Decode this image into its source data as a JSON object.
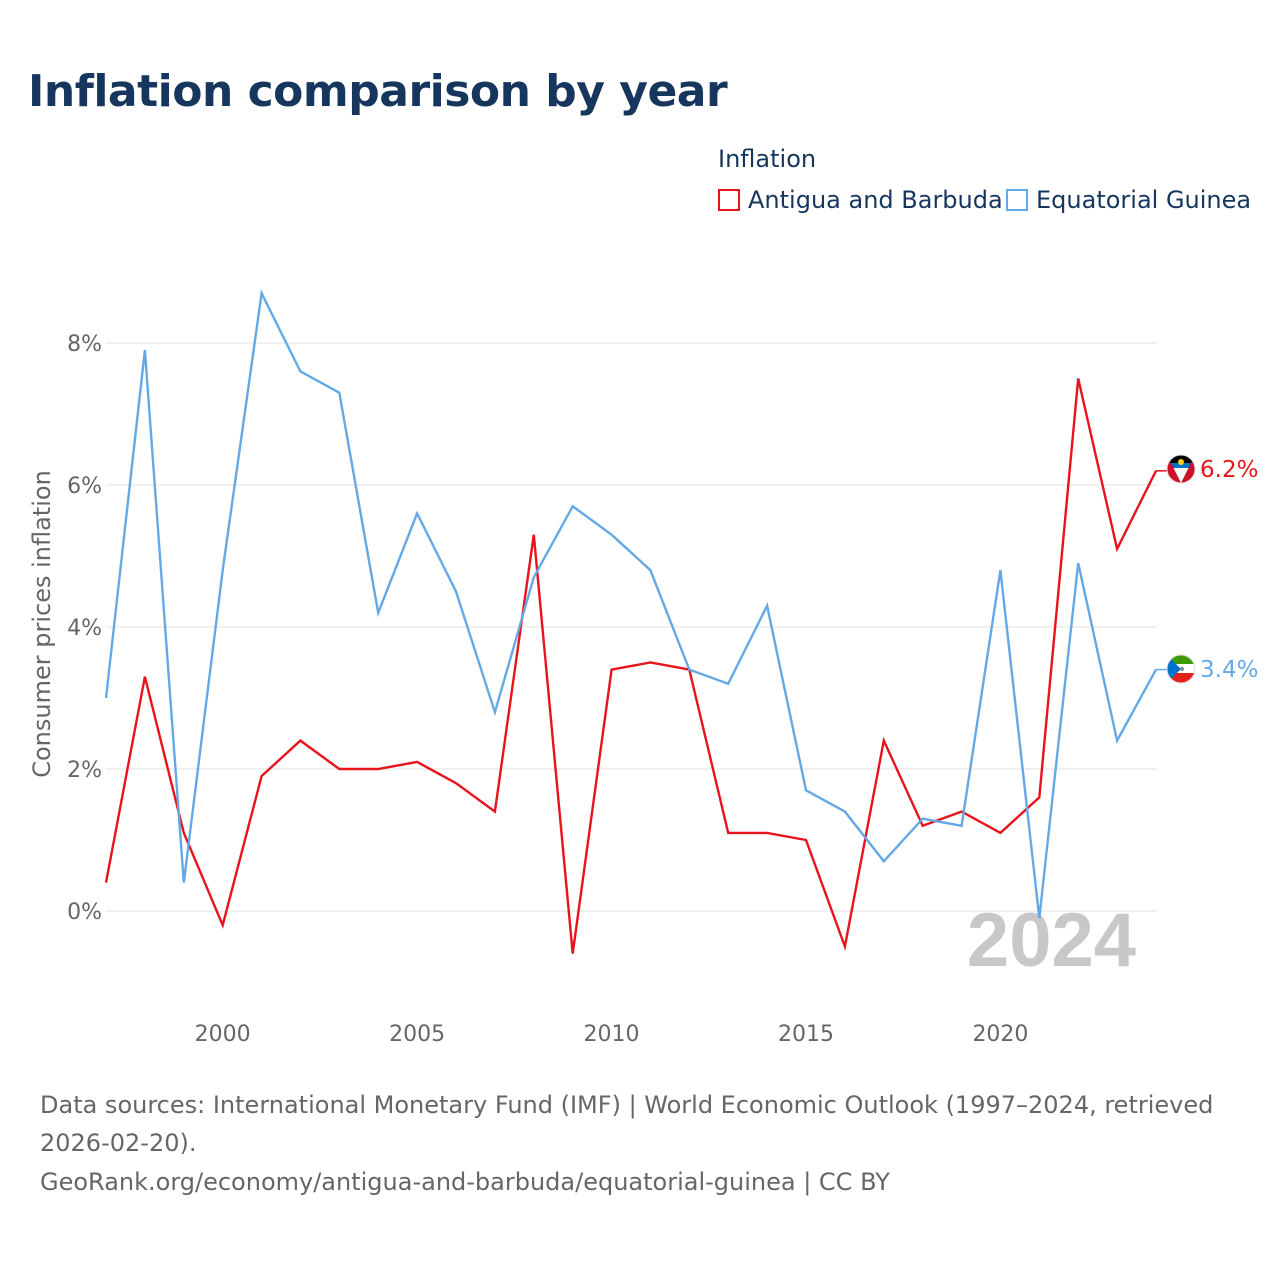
{
  "title": "Inflation comparison by year",
  "legend": {
    "title": "Inflation",
    "items": [
      {
        "label": "Antigua and Barbuda",
        "color": "#e8141c"
      },
      {
        "label": "Equatorial Guinea",
        "color": "#64a9e6"
      }
    ]
  },
  "chart_data": {
    "type": "line",
    "ylabel": "Consumer prices inflation",
    "ylim": [
      -1.5,
      9.5
    ],
    "xlim": [
      1997,
      2024.1
    ],
    "yticks": [
      0,
      2,
      4,
      6,
      8
    ],
    "ytick_labels": [
      "0%",
      "2%",
      "4%",
      "6%",
      "8%"
    ],
    "xticks": [
      2000,
      2005,
      2010,
      2015,
      2020
    ],
    "xtick_labels": [
      "2000",
      "2005",
      "2010",
      "2015",
      "2020"
    ],
    "grid": true,
    "watermark_year": "2024",
    "x": [
      1997,
      1998,
      1999,
      2000,
      2001,
      2002,
      2003,
      2004,
      2005,
      2006,
      2007,
      2008,
      2009,
      2010,
      2011,
      2012,
      2013,
      2014,
      2015,
      2016,
      2017,
      2018,
      2019,
      2020,
      2021,
      2022,
      2023,
      2024
    ],
    "series": [
      {
        "name": "Antigua and Barbuda",
        "color": "#e8141c",
        "end_label": "6.2%",
        "flag_icon": "antigua-and-barbuda-flag-icon",
        "values": [
          0.4,
          3.3,
          1.1,
          -0.2,
          1.9,
          2.4,
          2.0,
          2.0,
          2.1,
          1.8,
          1.4,
          5.3,
          -0.6,
          3.4,
          3.5,
          3.4,
          1.1,
          1.1,
          1.0,
          -0.5,
          2.4,
          1.2,
          1.4,
          1.1,
          1.6,
          7.5,
          5.1,
          6.2
        ]
      },
      {
        "name": "Equatorial Guinea",
        "color": "#64a9e6",
        "end_label": "3.4%",
        "flag_icon": "equatorial-guinea-flag-icon",
        "values": [
          3.0,
          7.9,
          0.4,
          4.8,
          8.7,
          7.6,
          7.3,
          4.2,
          5.6,
          4.5,
          2.8,
          4.7,
          5.7,
          5.3,
          4.8,
          3.4,
          3.2,
          4.3,
          1.7,
          1.4,
          0.7,
          1.3,
          1.2,
          4.8,
          -0.1,
          4.9,
          2.4,
          3.4
        ]
      }
    ]
  },
  "source": {
    "line1": "Data sources: International Monetary Fund (IMF) | World Economic Outlook (1997–2024, retrieved 2026-02-20).",
    "line2": "GeoRank.org/economy/antigua-and-barbuda/equatorial-guinea | CC BY"
  }
}
